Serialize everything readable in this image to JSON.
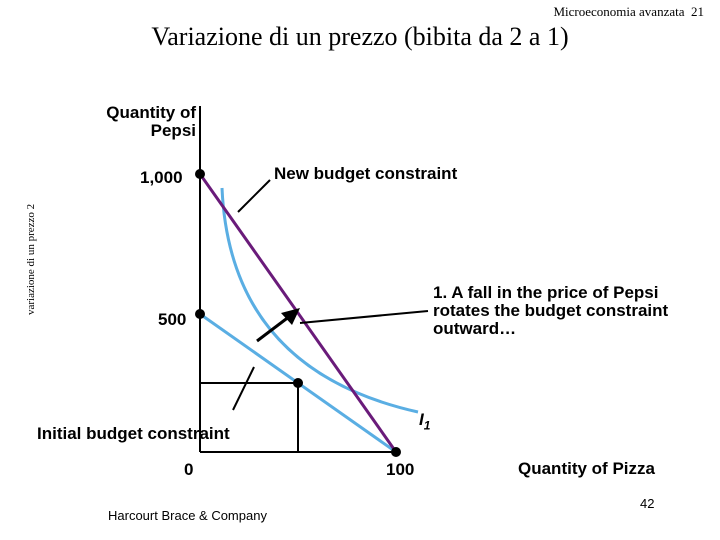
{
  "header": {
    "course": "Microeconomia avanzata",
    "slide_number": "21"
  },
  "title": "Variazione di un prezzo (bibita da 2 a 1)",
  "side_caption": "variazione di un prezzo 2",
  "axes": {
    "y_label": "Quantity of Pepsi",
    "x_label": "Quantity of Pizza",
    "y_ticks": [
      "1,000",
      "500"
    ],
    "x_ticks": [
      "0",
      "100"
    ]
  },
  "annotations": {
    "new_budget": "New budget constraint",
    "initial_budget": "Initial budget constraint",
    "fall_note": "1. A fall in the price of Pepsi rotates the budget constraint outward…",
    "indifference_label": "I",
    "indifference_subscript": "1"
  },
  "footer": {
    "publisher": "Harcourt Brace & Company",
    "page": "42"
  },
  "colors": {
    "new_budget_line": "#6a1b7a",
    "initial_budget_line": "#5aaee3",
    "indifference_curve": "#5aaee3",
    "axis": "#000000"
  },
  "chart_data": {
    "type": "line",
    "xlabel": "Quantity of Pizza",
    "ylabel": "Quantity of Pepsi",
    "series": [
      {
        "points": [
          [
            0,
            1000
          ],
          [
            100,
            0
          ]
        ]
      },
      {
        "points": [
          [
            0,
            500
          ],
          [
            100,
            0
          ]
        ]
      }
    ]
  }
}
